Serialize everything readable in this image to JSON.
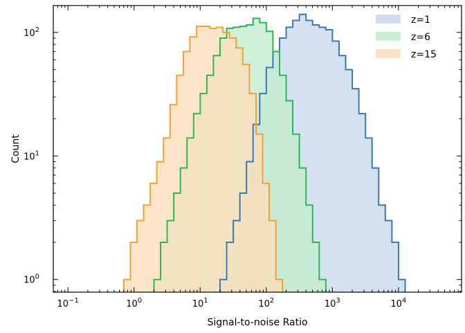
{
  "chart_data": {
    "type": "histogram",
    "title": "",
    "xlabel": "Signal-to-noise Ratio",
    "ylabel": "Count",
    "xscale": "log",
    "yscale": "log",
    "xlim": [
      0.06,
      90000
    ],
    "ylim": [
      0.79,
      165
    ],
    "x_ticks": [
      {
        "value": 0.1,
        "base": "10",
        "exp": "−1"
      },
      {
        "value": 1,
        "base": "10",
        "exp": "0"
      },
      {
        "value": 10,
        "base": "10",
        "exp": "1"
      },
      {
        "value": 100,
        "base": "10",
        "exp": "2"
      },
      {
        "value": 1000,
        "base": "10",
        "exp": "3"
      },
      {
        "value": 10000,
        "base": "10",
        "exp": "4"
      }
    ],
    "y_ticks": [
      {
        "value": 1,
        "base": "10",
        "exp": "0"
      },
      {
        "value": 10,
        "base": "10",
        "exp": "1"
      },
      {
        "value": 100,
        "base": "10",
        "exp": "2"
      }
    ],
    "grid": false,
    "legend_position": "top-right",
    "series": [
      {
        "name": "z=1",
        "color": "#3a78b5",
        "fill": "#c9daee",
        "x_start": 20,
        "bin_log_width": 0.1,
        "counts": [
          1,
          2,
          3,
          5,
          9,
          18,
          32,
          52,
          70,
          90,
          110,
          125,
          140,
          125,
          115,
          110,
          105,
          85,
          65,
          50,
          35,
          22,
          14,
          8,
          4,
          3,
          2,
          1
        ]
      },
      {
        "name": "z=6",
        "color": "#2ab84f",
        "fill": "#c2ecce",
        "x_start": 2,
        "bin_log_width": 0.1,
        "counts": [
          1,
          2,
          3,
          5,
          8,
          14,
          22,
          32,
          45,
          65,
          90,
          108,
          110,
          112,
          115,
          130,
          120,
          102,
          70,
          45,
          28,
          15,
          8,
          4,
          2,
          1
        ]
      },
      {
        "name": "z=15",
        "color": "#f5a030",
        "fill": "#fcdfbb",
        "x_start": 0.7,
        "bin_log_width": 0.1,
        "counts": [
          1,
          2,
          3,
          4,
          6,
          9,
          14,
          26,
          45,
          70,
          92,
          112,
          112,
          108,
          110,
          100,
          90,
          75,
          55,
          32,
          15,
          6,
          3,
          1
        ]
      }
    ]
  }
}
